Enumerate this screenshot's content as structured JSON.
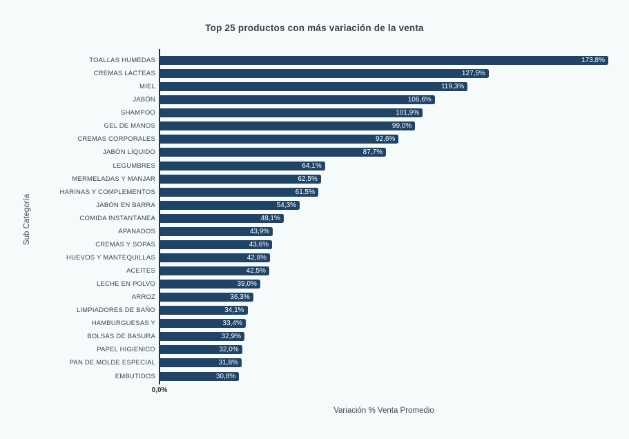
{
  "page": {
    "background_color": "#f5fbfb"
  },
  "chart_data": {
    "type": "bar",
    "orientation": "horizontal",
    "title": "Top 25 productos con más variación de la venta",
    "xlabel": "Variación % Venta Promedio",
    "ylabel": "Sub Categoría",
    "x_tick_labels": [
      "0,0%"
    ],
    "xlim": [
      0,
      185
    ],
    "grid": false,
    "legend": false,
    "bar_color": "#214366",
    "value_label_color": "#ffffff",
    "categories": [
      "TOALLAS HUMEDAS",
      "CREMAS LÁCTEAS",
      "MIEL",
      "JABÓN",
      "SHAMPOO",
      "GEL DE MANOS",
      "CREMAS CORPORALES",
      "JABÓN LÍQUIDO",
      "LEGUMBRES",
      "MERMELADAS Y MANJAR",
      "HARINAS Y COMPLEMENTOS",
      "JABÓN EN BARRA",
      "COMIDA INSTANTÁNEA",
      "APANADOS",
      "CREMAS Y SOPAS",
      "HUEVOS Y MANTEQUILLAS",
      "ACEITES",
      "LECHE EN POLVO",
      "ARROZ",
      "LIMPIADORES DE BAÑO",
      "HAMBURGUESAS Y",
      "BOLSAS DE BASURA",
      "PAPEL HIGIENICO",
      "PAN DE MOLDE ESPECIAL",
      "EMBUTIDOS"
    ],
    "values": [
      173.8,
      127.5,
      119.3,
      106.6,
      101.9,
      99.0,
      92.6,
      87.7,
      64.1,
      62.5,
      61.5,
      54.3,
      48.1,
      43.9,
      43.6,
      42.8,
      42.5,
      39.0,
      36.3,
      34.1,
      33.4,
      32.9,
      32.0,
      31.8,
      30.8
    ],
    "value_labels": [
      "173,8%",
      "127,5%",
      "119,3%",
      "106,6%",
      "101,9%",
      "99,0%",
      "92,6%",
      "87,7%",
      "64,1%",
      "62,5%",
      "61,5%",
      "54,3%",
      "48,1%",
      "43,9%",
      "43,6%",
      "42,8%",
      "42,5%",
      "39,0%",
      "36,3%",
      "34,1%",
      "33,4%",
      "32,9%",
      "32,0%",
      "31,8%",
      "30,8%"
    ]
  }
}
